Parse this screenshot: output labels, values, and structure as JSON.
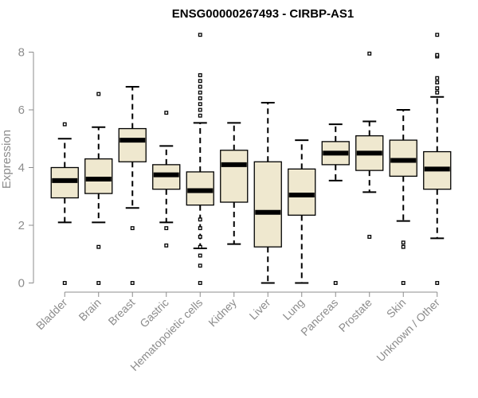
{
  "chart_data": {
    "type": "boxplot",
    "title": "ENSG00000267493 - CIRBP-AS1",
    "xlabel": "",
    "ylabel": "Expression",
    "ylim": [
      0,
      8.6
    ],
    "yticks": [
      0,
      2,
      4,
      6,
      8
    ],
    "colors": {
      "box_fill": "#efe8cf",
      "stroke": "#000000",
      "axis": "#8c8c8c",
      "text": "#8c8c8c"
    },
    "categories": [
      "Bladder",
      "Brain",
      "Breast",
      "Gastric",
      "Hematopoietic cells",
      "Kidney",
      "Liver",
      "Lung",
      "Pancreas",
      "Prostate",
      "Skin",
      "Unknown / Other"
    ],
    "boxes": [
      {
        "name": "Bladder",
        "whisker_low": 2.1,
        "q1": 2.95,
        "median": 3.55,
        "q3": 4.0,
        "whisker_high": 5.0,
        "outliers": [
          0,
          5.5
        ]
      },
      {
        "name": "Brain",
        "whisker_low": 2.1,
        "q1": 3.1,
        "median": 3.6,
        "q3": 4.3,
        "whisker_high": 5.4,
        "outliers": [
          0,
          1.25,
          6.55
        ]
      },
      {
        "name": "Breast",
        "whisker_low": 2.6,
        "q1": 4.2,
        "median": 4.95,
        "q3": 5.35,
        "whisker_high": 6.8,
        "outliers": [
          0,
          1.9
        ]
      },
      {
        "name": "Gastric",
        "whisker_low": 2.1,
        "q1": 3.25,
        "median": 3.75,
        "q3": 4.1,
        "whisker_high": 4.75,
        "outliers": [
          1.3,
          1.9,
          5.9
        ]
      },
      {
        "name": "Hematopoietic cells",
        "whisker_low": 1.2,
        "q1": 2.7,
        "median": 3.2,
        "q3": 3.85,
        "whisker_high": 5.55,
        "outliers": [
          0.0,
          0.6,
          0.95,
          1.25,
          1.6,
          1.9,
          2.2,
          5.8,
          6.0,
          6.2,
          6.4,
          6.6,
          6.8,
          7.0,
          7.2,
          8.6
        ]
      },
      {
        "name": "Kidney",
        "whisker_low": 1.35,
        "q1": 2.8,
        "median": 4.1,
        "q3": 4.6,
        "whisker_high": 5.55,
        "outliers": []
      },
      {
        "name": "Liver",
        "whisker_low": 0.0,
        "q1": 1.25,
        "median": 2.45,
        "q3": 4.2,
        "whisker_high": 6.25,
        "outliers": []
      },
      {
        "name": "Lung",
        "whisker_low": 0.0,
        "q1": 2.35,
        "median": 3.05,
        "q3": 3.95,
        "whisker_high": 4.95,
        "outliers": []
      },
      {
        "name": "Pancreas",
        "whisker_low": 3.55,
        "q1": 4.1,
        "median": 4.5,
        "q3": 4.9,
        "whisker_high": 5.5,
        "outliers": [
          0
        ]
      },
      {
        "name": "Prostate",
        "whisker_low": 3.15,
        "q1": 3.9,
        "median": 4.5,
        "q3": 5.1,
        "whisker_high": 5.6,
        "outliers": [
          1.6,
          7.95
        ]
      },
      {
        "name": "Skin",
        "whisker_low": 2.15,
        "q1": 3.7,
        "median": 4.25,
        "q3": 4.95,
        "whisker_high": 6.0,
        "outliers": [
          0,
          1.25,
          1.4
        ]
      },
      {
        "name": "Unknown / Other",
        "whisker_low": 1.55,
        "q1": 3.25,
        "median": 3.95,
        "q3": 4.55,
        "whisker_high": 6.45,
        "outliers": [
          0,
          6.6,
          6.75,
          6.95,
          7.1,
          7.85,
          7.9,
          8.6
        ]
      }
    ]
  }
}
